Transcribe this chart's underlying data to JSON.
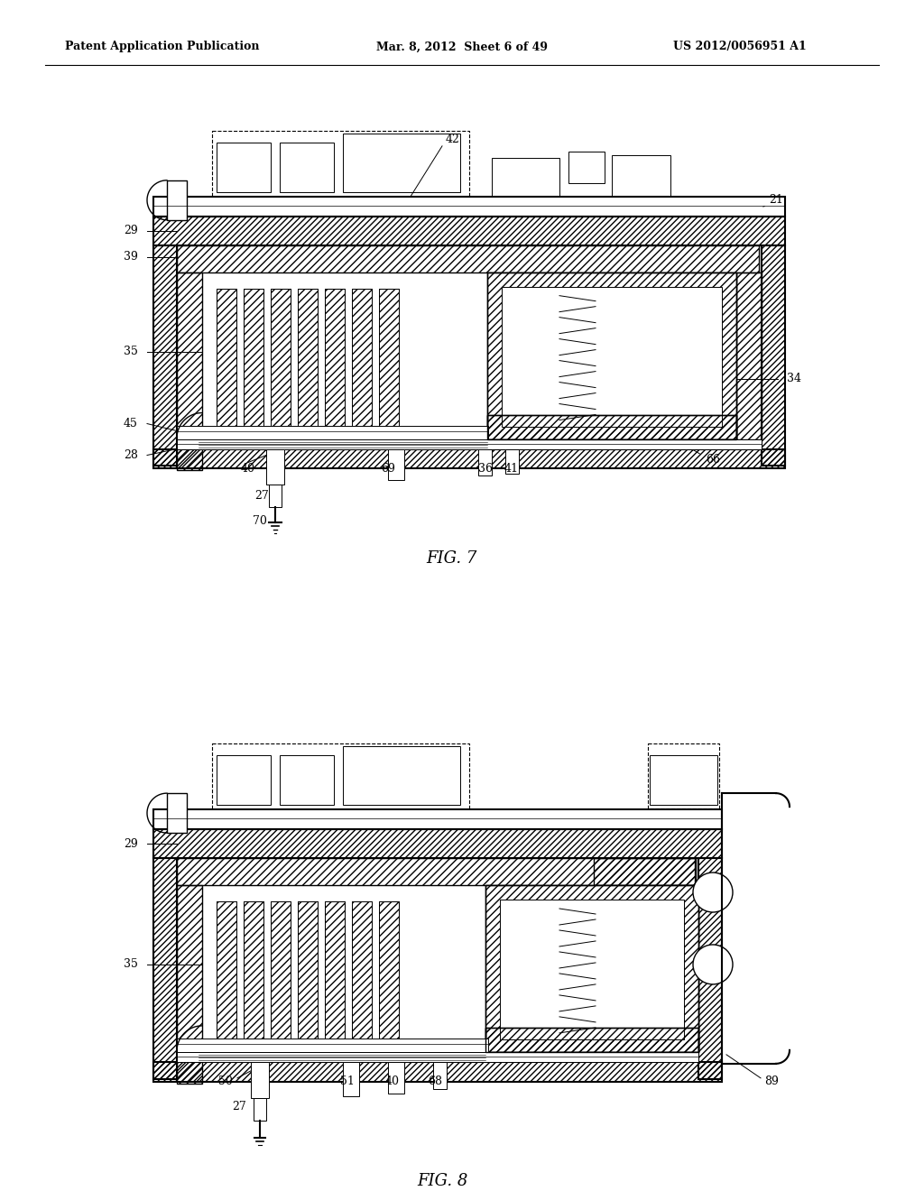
{
  "header_left": "Patent Application Publication",
  "header_mid": "Mar. 8, 2012  Sheet 6 of 49",
  "header_right": "US 2012/0056951 A1",
  "fig7_label": "FIG. 7",
  "fig8_label": "FIG. 8",
  "bg_color": "#ffffff",
  "line_color": "#000000"
}
